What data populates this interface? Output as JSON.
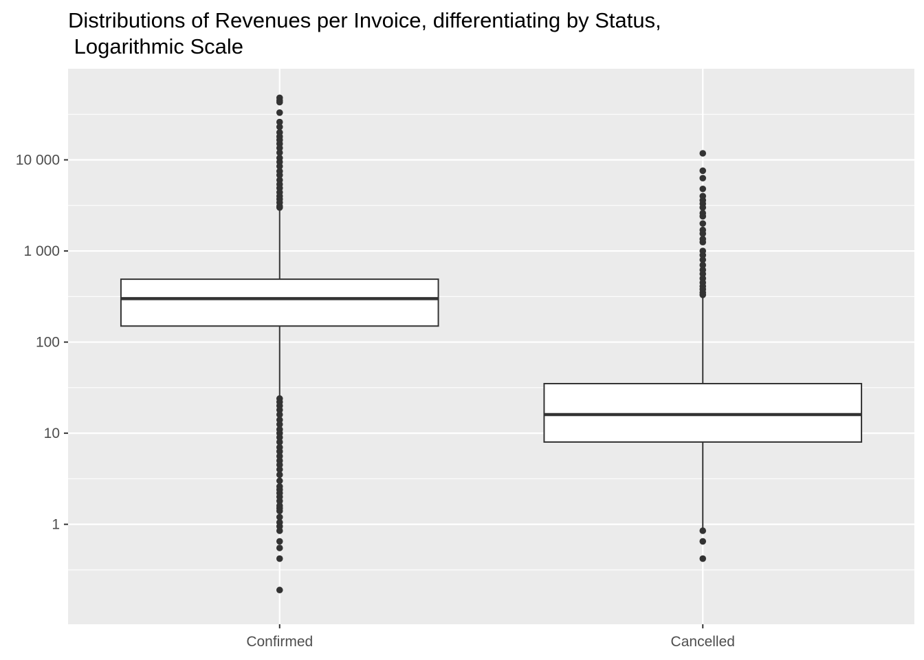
{
  "chart_data": {
    "type": "boxplot",
    "title_lines": [
      "Distributions of Revenues per Invoice, differentiating by Status,",
      " Logarithmic Scale"
    ],
    "xlabel": "",
    "ylabel": "",
    "y_scale": "log10",
    "ylim": [
      0.08,
      100000
    ],
    "y_ticks": [
      {
        "value": 1,
        "label": "1"
      },
      {
        "value": 10,
        "label": "10"
      },
      {
        "value": 100,
        "label": "100"
      },
      {
        "value": 1000,
        "label": "1 000"
      },
      {
        "value": 10000,
        "label": "10 000"
      }
    ],
    "grid": true,
    "legend": "none",
    "colors": {
      "panel": "#ebebeb",
      "grid": "#ffffff",
      "box_fill": "#ffffff",
      "box_stroke": "#333333",
      "outlier": "#333333"
    },
    "categories": [
      "Confirmed",
      "Cancelled"
    ],
    "boxes": [
      {
        "category": "Confirmed",
        "whisker_low": 25,
        "q1": 150,
        "median": 300,
        "q3": 490,
        "whisker_high": 2900,
        "outliers_high": [
          48000,
          45000,
          43000,
          33000,
          26000,
          23000,
          20000,
          18000,
          16500,
          15000,
          13500,
          12000,
          10500,
          9500,
          8500,
          7500,
          6800,
          6000,
          5400,
          4900,
          4400,
          4000,
          3700,
          3400,
          3100,
          3000
        ],
        "outliers_low": [
          24,
          22,
          20,
          18,
          16,
          14,
          12.5,
          11,
          10,
          9,
          8,
          7,
          6.3,
          5.6,
          5,
          4.5,
          4,
          3.5,
          3,
          2.6,
          2.4,
          2.2,
          2,
          1.8,
          1.6,
          1.5,
          1.4,
          1.2,
          1.05,
          0.95,
          0.85,
          0.65,
          0.55,
          0.42,
          0.19
        ]
      },
      {
        "category": "Cancelled",
        "whisker_low": 0.9,
        "q1": 8,
        "median": 16,
        "q3": 35,
        "whisker_high": 320,
        "outliers_high": [
          11800,
          7600,
          6300,
          4800,
          4000,
          3600,
          3300,
          3000,
          2600,
          2400,
          2000,
          1700,
          1550,
          1350,
          1250,
          1000,
          900,
          800,
          700,
          620,
          560,
          500,
          450,
          410,
          380,
          350,
          330
        ],
        "outliers_low": [
          0.85,
          0.65,
          0.42
        ]
      }
    ]
  }
}
